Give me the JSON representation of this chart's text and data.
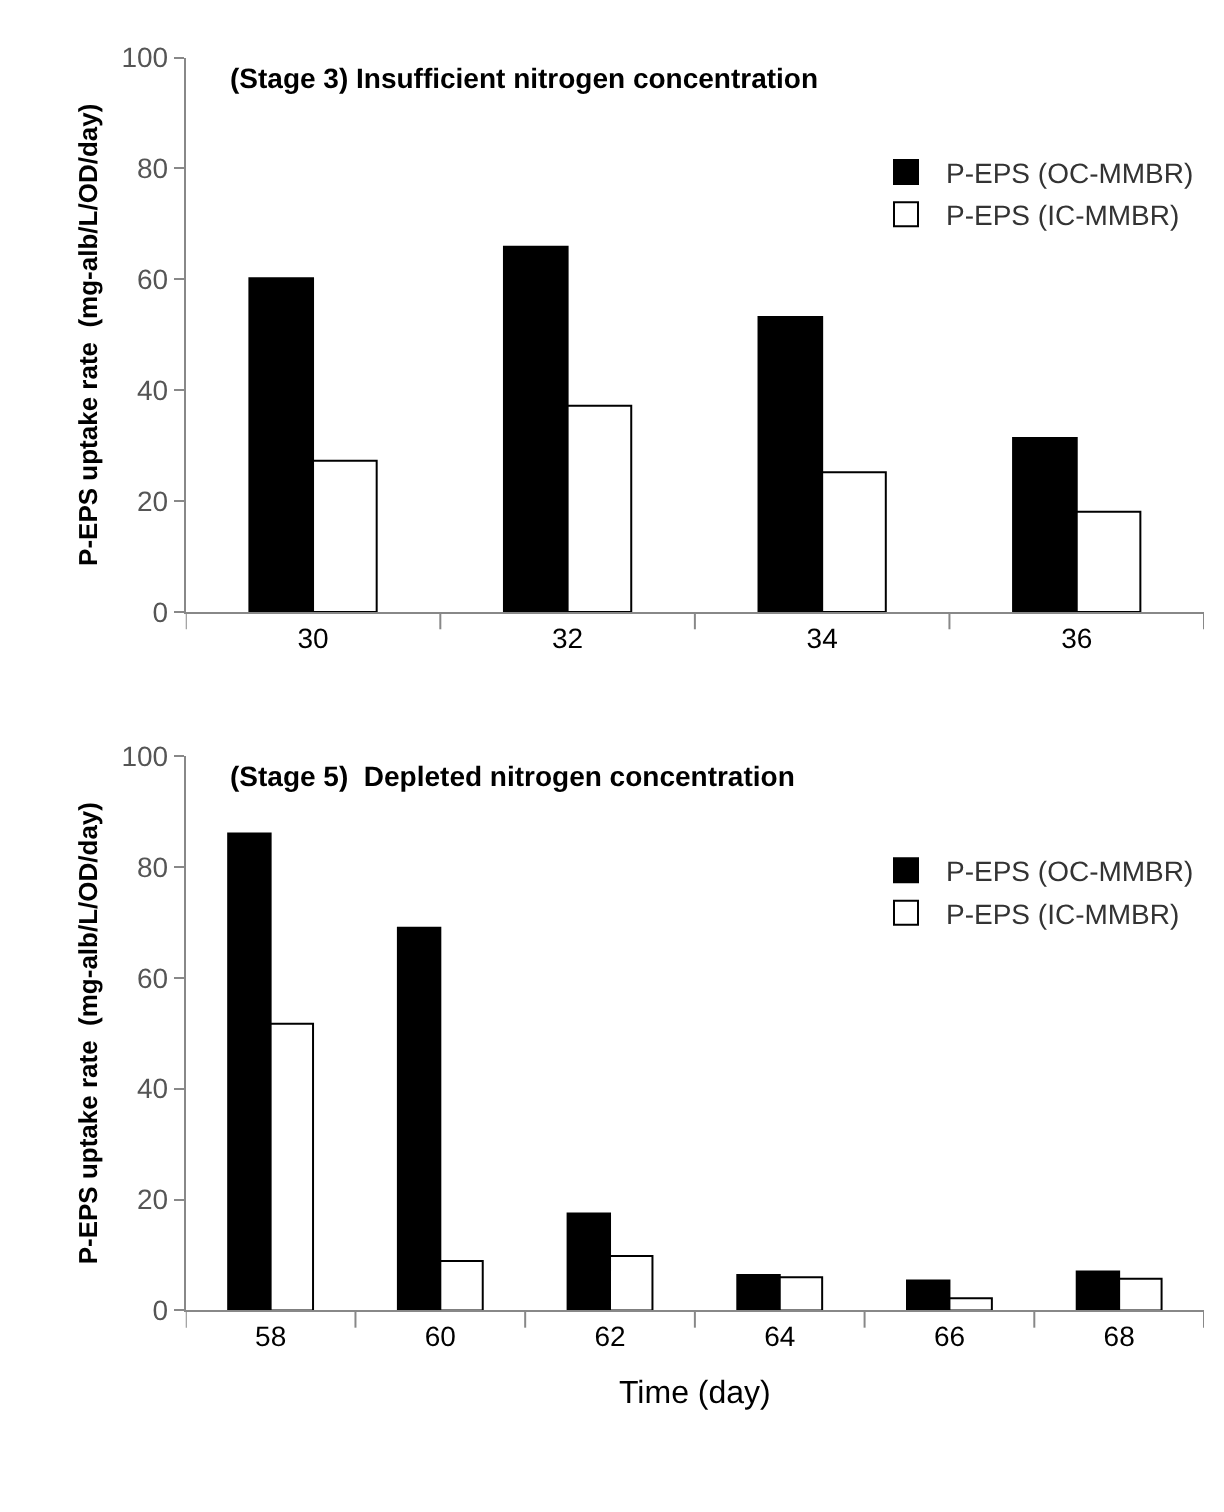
{
  "chart_data": [
    {
      "type": "bar",
      "title": "(Stage 3) Insufficient nitrogen concentration",
      "ylabel": "P-EPS uptake rate  (mg-alb/L/OD/day)",
      "categories": [
        "30",
        "32",
        "34",
        "36"
      ],
      "series": [
        {
          "name": "P-EPS (OC-MMBR)",
          "color": "#000000",
          "values": [
            60.2,
            65.9,
            53.2,
            31.4
          ]
        },
        {
          "name": "P-EPS (IC-MMBR)",
          "color": "#ffffff",
          "values": [
            27.3,
            37.2,
            25.2,
            18.1
          ]
        }
      ],
      "ylim": [
        0,
        100
      ],
      "yticks": [
        0,
        20,
        40,
        60,
        80,
        100
      ],
      "legend": "top right"
    },
    {
      "type": "bar",
      "title": "(Stage 5)  Depleted nitrogen concentration",
      "ylabel": "P-EPS uptake rate  (mg-alb/L/OD/day)",
      "xlabel": "Time (day)",
      "categories": [
        "58",
        "60",
        "62",
        "64",
        "66",
        "68"
      ],
      "series": [
        {
          "name": "P-EPS (OC-MMBR)",
          "color": "#000000",
          "values": [
            86,
            69,
            17.5,
            6.4,
            5.4,
            7
          ]
        },
        {
          "name": "P-EPS (IC-MMBR)",
          "color": "#ffffff",
          "values": [
            51.7,
            8.9,
            9.8,
            6,
            2.2,
            5.7
          ]
        }
      ],
      "ylim": [
        0,
        100
      ],
      "yticks": [
        0,
        20,
        40,
        60,
        80,
        100
      ],
      "legend": "top right"
    }
  ]
}
